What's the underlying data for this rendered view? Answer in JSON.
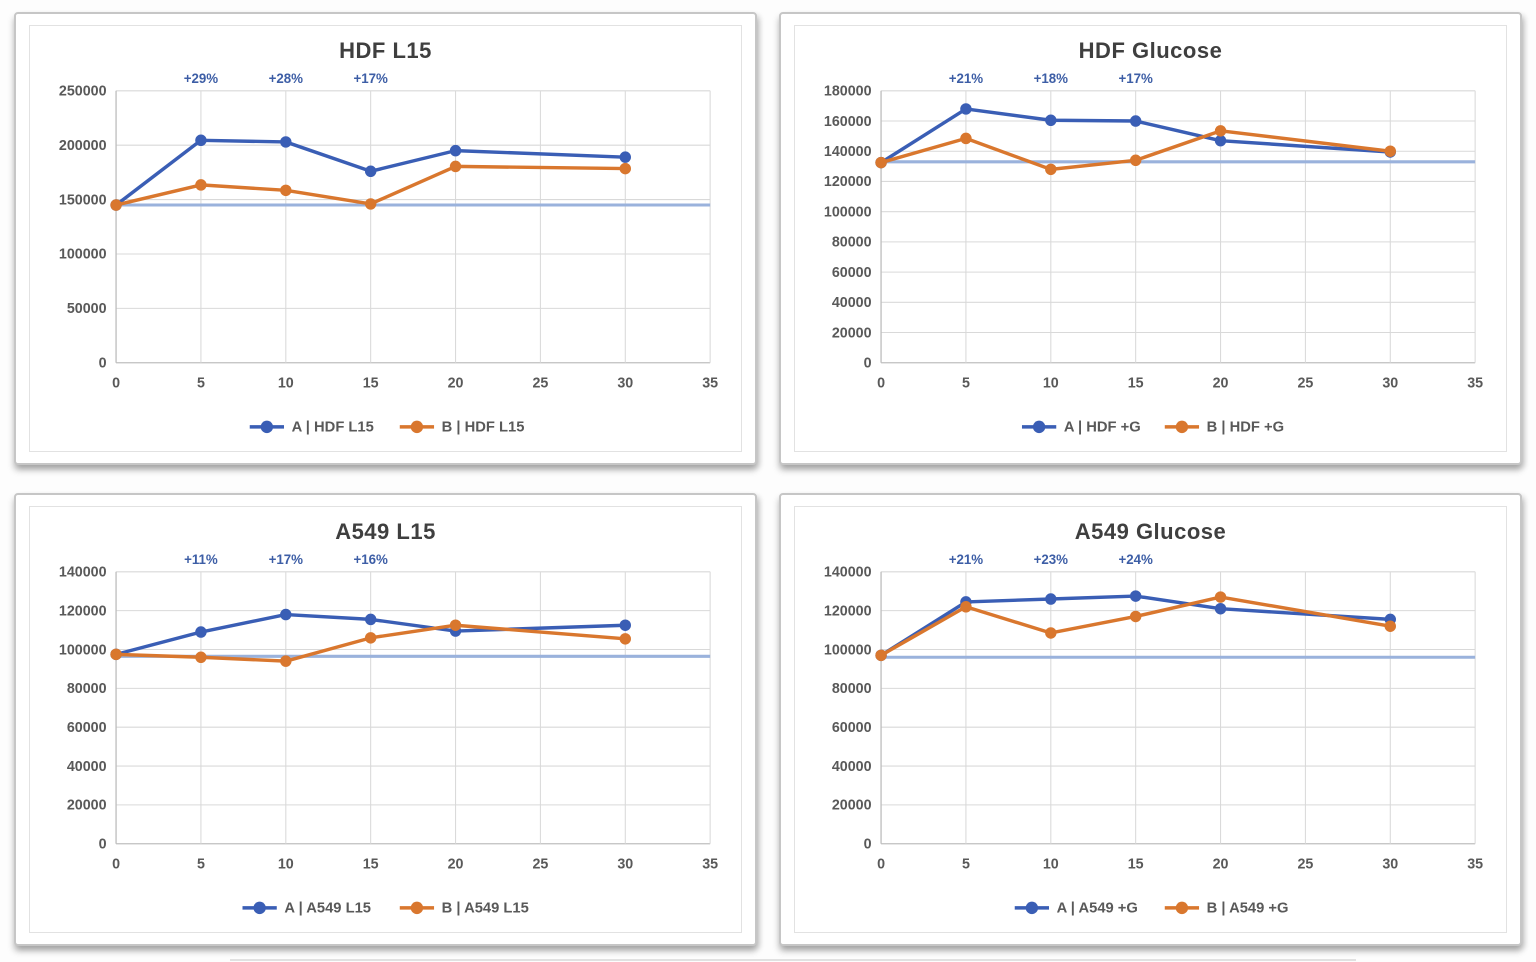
{
  "chart_data": [
    {
      "type": "line",
      "title": "HDF L15",
      "x": [
        0,
        5,
        10,
        15,
        20,
        30
      ],
      "xlim": [
        0,
        35
      ],
      "xticks": [
        0,
        5,
        10,
        15,
        20,
        25,
        30,
        35
      ],
      "ylim": [
        0,
        250000
      ],
      "ytick_step": 50000,
      "grid": true,
      "legend_position": "bottom",
      "series": [
        {
          "name": "A | HDF L15",
          "color": "#3a5eb5",
          "values": [
            145000,
            204500,
            203000,
            176000,
            195000,
            189000
          ]
        },
        {
          "name": "B | HDF L15",
          "color": "#d9772e",
          "values": [
            145000,
            163500,
            158500,
            146000,
            180500,
            178500
          ]
        }
      ],
      "baseline": {
        "value": 145000,
        "color": "#9ab2dc"
      },
      "annotations": [
        {
          "x": 5,
          "label": "+29%"
        },
        {
          "x": 10,
          "label": "+28%"
        },
        {
          "x": 15,
          "label": "+17%"
        }
      ],
      "annotation_color": "#3d5ea6"
    },
    {
      "type": "line",
      "title": "HDF Glucose",
      "x": [
        0,
        5,
        10,
        15,
        20,
        30
      ],
      "xlim": [
        0,
        35
      ],
      "xticks": [
        0,
        5,
        10,
        15,
        20,
        25,
        30,
        35
      ],
      "ylim": [
        0,
        180000
      ],
      "ytick_step": 20000,
      "grid": true,
      "legend_position": "bottom",
      "series": [
        {
          "name": "A | HDF +G",
          "color": "#3a5eb5",
          "values": [
            132500,
            168000,
            160500,
            160000,
            147000,
            139500
          ]
        },
        {
          "name": "B | HDF +G",
          "color": "#d9772e",
          "values": [
            132500,
            148500,
            128000,
            134000,
            153500,
            140000
          ]
        }
      ],
      "baseline": {
        "value": 133000,
        "color": "#9ab2dc"
      },
      "annotations": [
        {
          "x": 5,
          "label": "+21%"
        },
        {
          "x": 10,
          "label": "+18%"
        },
        {
          "x": 15,
          "label": "+17%"
        }
      ],
      "annotation_color": "#3d5ea6"
    },
    {
      "type": "line",
      "title": "A549 L15",
      "x": [
        0,
        5,
        10,
        15,
        20,
        30
      ],
      "xlim": [
        0,
        35
      ],
      "xticks": [
        0,
        5,
        10,
        15,
        20,
        25,
        30,
        35
      ],
      "ylim": [
        0,
        140000
      ],
      "ytick_step": 20000,
      "grid": true,
      "legend_position": "bottom",
      "series": [
        {
          "name": "A | A549 L15",
          "color": "#3a5eb5",
          "values": [
            97500,
            109000,
            118000,
            115500,
            109500,
            112500
          ]
        },
        {
          "name": "B | A549 L15",
          "color": "#d9772e",
          "values": [
            97500,
            96000,
            94000,
            106000,
            112500,
            105500
          ]
        }
      ],
      "baseline": {
        "value": 96500,
        "color": "#9ab2dc"
      },
      "annotations": [
        {
          "x": 5,
          "label": "+11%"
        },
        {
          "x": 10,
          "label": "+17%"
        },
        {
          "x": 15,
          "label": "+16%"
        }
      ],
      "annotation_color": "#3d5ea6"
    },
    {
      "type": "line",
      "title": "A549 Glucose",
      "x": [
        0,
        5,
        10,
        15,
        20,
        30
      ],
      "xlim": [
        0,
        35
      ],
      "xticks": [
        0,
        5,
        10,
        15,
        20,
        25,
        30,
        35
      ],
      "ylim": [
        0,
        140000
      ],
      "ytick_step": 20000,
      "grid": true,
      "legend_position": "bottom",
      "series": [
        {
          "name": "A | A549 +G",
          "color": "#3a5eb5",
          "values": [
            97000,
            124500,
            126000,
            127500,
            121000,
            115500
          ]
        },
        {
          "name": "B | A549 +G",
          "color": "#d9772e",
          "values": [
            97000,
            122000,
            108500,
            117000,
            127000,
            112000
          ]
        }
      ],
      "baseline": {
        "value": 96000,
        "color": "#9ab2dc"
      },
      "annotations": [
        {
          "x": 5,
          "label": "+21%"
        },
        {
          "x": 10,
          "label": "+23%"
        },
        {
          "x": 15,
          "label": "+24%"
        }
      ],
      "annotation_color": "#3d5ea6"
    }
  ],
  "style": {
    "gridline_color": "#d9d9d9",
    "axis_color": "#bfbfbf",
    "tick_label_color": "#595959",
    "title_color": "#3f3f3f",
    "legend_text_color": "#595959"
  }
}
